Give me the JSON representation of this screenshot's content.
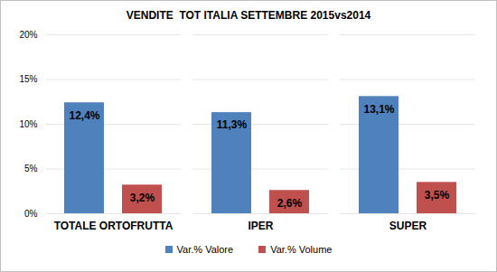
{
  "chart_data": {
    "type": "bar",
    "title": "VENDITE  TOT ITALIA SETTEMBRE 2015vs2014",
    "categories": [
      "TOTALE ORTOFRUTTA",
      "IPER",
      "SUPER"
    ],
    "series": [
      {
        "name": "Var.% Valore",
        "color": "#4f81bd",
        "values": [
          12.4,
          11.3,
          13.1
        ],
        "value_labels": [
          "12,4%",
          "11,3%",
          "13,1%"
        ]
      },
      {
        "name": "Var.% Volume",
        "color": "#c0504d",
        "values": [
          3.2,
          2.6,
          3.5
        ],
        "value_labels": [
          "3,2%",
          "2,6%",
          "3,5%"
        ]
      }
    ],
    "ylim": [
      0,
      20
    ],
    "yticks": [
      {
        "value": 0,
        "label": "0%"
      },
      {
        "value": 5,
        "label": "5%"
      },
      {
        "value": 10,
        "label": "10%"
      },
      {
        "value": 15,
        "label": "15%"
      },
      {
        "value": 20,
        "label": "20%"
      }
    ],
    "grid": true,
    "legend": "bottom",
    "data_labels": true
  }
}
